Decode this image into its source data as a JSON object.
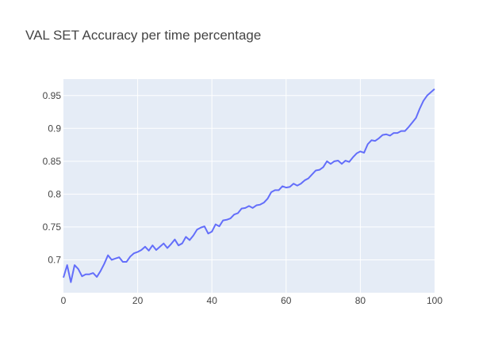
{
  "chart_data": {
    "type": "line",
    "title": "VAL SET Accuracy per time percentage",
    "xlabel": "",
    "ylabel": "",
    "xlim": [
      0,
      100
    ],
    "ylim": [
      0.65,
      0.975
    ],
    "x_ticks": [
      0,
      20,
      40,
      60,
      80,
      100
    ],
    "x_tick_labels": [
      "0",
      "20",
      "40",
      "60",
      "80",
      "100"
    ],
    "y_ticks": [
      0.7,
      0.75,
      0.8,
      0.85,
      0.9,
      0.95
    ],
    "y_tick_labels": [
      "0.7",
      "0.75",
      "0.8",
      "0.85",
      "0.9",
      "0.95"
    ],
    "grid": true,
    "legend": "none",
    "colors": {
      "plot_bg": "#e5ecf6",
      "grid": "#ffffff",
      "line": "#636efa",
      "text": "#444444"
    },
    "series": [
      {
        "name": "",
        "x": [
          0,
          1,
          2,
          3,
          4,
          5,
          6,
          7,
          8,
          9,
          10,
          11,
          12,
          13,
          14,
          15,
          16,
          17,
          18,
          19,
          20,
          21,
          22,
          23,
          24,
          25,
          26,
          27,
          28,
          29,
          30,
          31,
          32,
          33,
          34,
          35,
          36,
          37,
          38,
          39,
          40,
          41,
          42,
          43,
          44,
          45,
          46,
          47,
          48,
          49,
          50,
          51,
          52,
          53,
          54,
          55,
          56,
          57,
          58,
          59,
          60,
          61,
          62,
          63,
          64,
          65,
          66,
          67,
          68,
          69,
          70,
          71,
          72,
          73,
          74,
          75,
          76,
          77,
          78,
          79,
          80,
          81,
          82,
          83,
          84,
          85,
          86,
          87,
          88,
          89,
          90,
          91,
          92,
          93,
          94,
          95,
          96,
          97,
          98,
          99,
          100
        ],
        "y": [
          0.673,
          0.692,
          0.666,
          0.692,
          0.686,
          0.675,
          0.678,
          0.678,
          0.68,
          0.674,
          0.683,
          0.694,
          0.707,
          0.7,
          0.702,
          0.704,
          0.697,
          0.697,
          0.705,
          0.71,
          0.712,
          0.715,
          0.72,
          0.714,
          0.722,
          0.715,
          0.72,
          0.725,
          0.718,
          0.724,
          0.731,
          0.722,
          0.725,
          0.735,
          0.73,
          0.737,
          0.746,
          0.749,
          0.751,
          0.74,
          0.743,
          0.754,
          0.751,
          0.76,
          0.761,
          0.763,
          0.769,
          0.771,
          0.778,
          0.779,
          0.782,
          0.779,
          0.783,
          0.784,
          0.787,
          0.793,
          0.803,
          0.806,
          0.806,
          0.812,
          0.81,
          0.811,
          0.816,
          0.813,
          0.816,
          0.821,
          0.824,
          0.83,
          0.836,
          0.837,
          0.841,
          0.85,
          0.846,
          0.85,
          0.851,
          0.846,
          0.851,
          0.849,
          0.856,
          0.862,
          0.865,
          0.863,
          0.876,
          0.882,
          0.881,
          0.885,
          0.89,
          0.891,
          0.889,
          0.893,
          0.893,
          0.896,
          0.896,
          0.902,
          0.909,
          0.916,
          0.93,
          0.942,
          0.95,
          0.955,
          0.96
        ]
      }
    ]
  }
}
